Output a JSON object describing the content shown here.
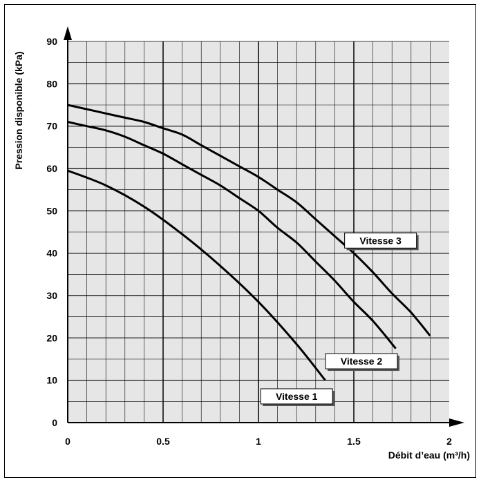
{
  "chart_data": {
    "type": "line",
    "xlabel": "Débit d’eau (m³/h)",
    "ylabel": "Pression disponible (kPa)",
    "xlim": [
      0,
      2
    ],
    "ylim": [
      0,
      90
    ],
    "x_ticks": [
      "0",
      "0.5",
      "1",
      "1.5",
      "2"
    ],
    "y_ticks": [
      "0",
      "10",
      "20",
      "30",
      "40",
      "50",
      "60",
      "70",
      "80",
      "90"
    ],
    "grid": true,
    "series": [
      {
        "name": "Vitesse 1",
        "x": [
          0,
          0.2,
          0.4,
          0.6,
          0.8,
          1.0,
          1.2,
          1.35
        ],
        "y": [
          59.5,
          56,
          51,
          44.5,
          37,
          28.5,
          18.5,
          10
        ]
      },
      {
        "name": "Vitesse 2",
        "x": [
          0,
          0.1,
          0.2,
          0.3,
          0.4,
          0.5,
          0.6,
          0.7,
          0.8,
          0.9,
          1.0,
          1.1,
          1.2,
          1.3,
          1.4,
          1.5,
          1.6,
          1.72
        ],
        "y": [
          71,
          70,
          69,
          67.5,
          65.5,
          63.5,
          61,
          58.5,
          56,
          53,
          50,
          46,
          42.5,
          38,
          33.5,
          28.5,
          24,
          17.5
        ]
      },
      {
        "name": "Vitesse 3",
        "x": [
          0,
          0.1,
          0.2,
          0.3,
          0.4,
          0.5,
          0.6,
          0.7,
          0.8,
          0.9,
          1.0,
          1.1,
          1.2,
          1.3,
          1.4,
          1.5,
          1.6,
          1.7,
          1.8,
          1.9
        ],
        "y": [
          75,
          74,
          73,
          72,
          71,
          69.5,
          68,
          65.5,
          63,
          60.5,
          58,
          55,
          52,
          48,
          44,
          40,
          35.5,
          30.5,
          26,
          20.5
        ]
      }
    ],
    "labels": [
      {
        "text": "Vitesse 3",
        "series": 2,
        "at": [
          1.64,
          43
        ]
      },
      {
        "text": "Vitesse 2",
        "series": 1,
        "at": [
          1.54,
          14.5
        ]
      },
      {
        "text": "Vitesse 1",
        "series": 0,
        "at": [
          1.2,
          6.2
        ]
      }
    ]
  }
}
